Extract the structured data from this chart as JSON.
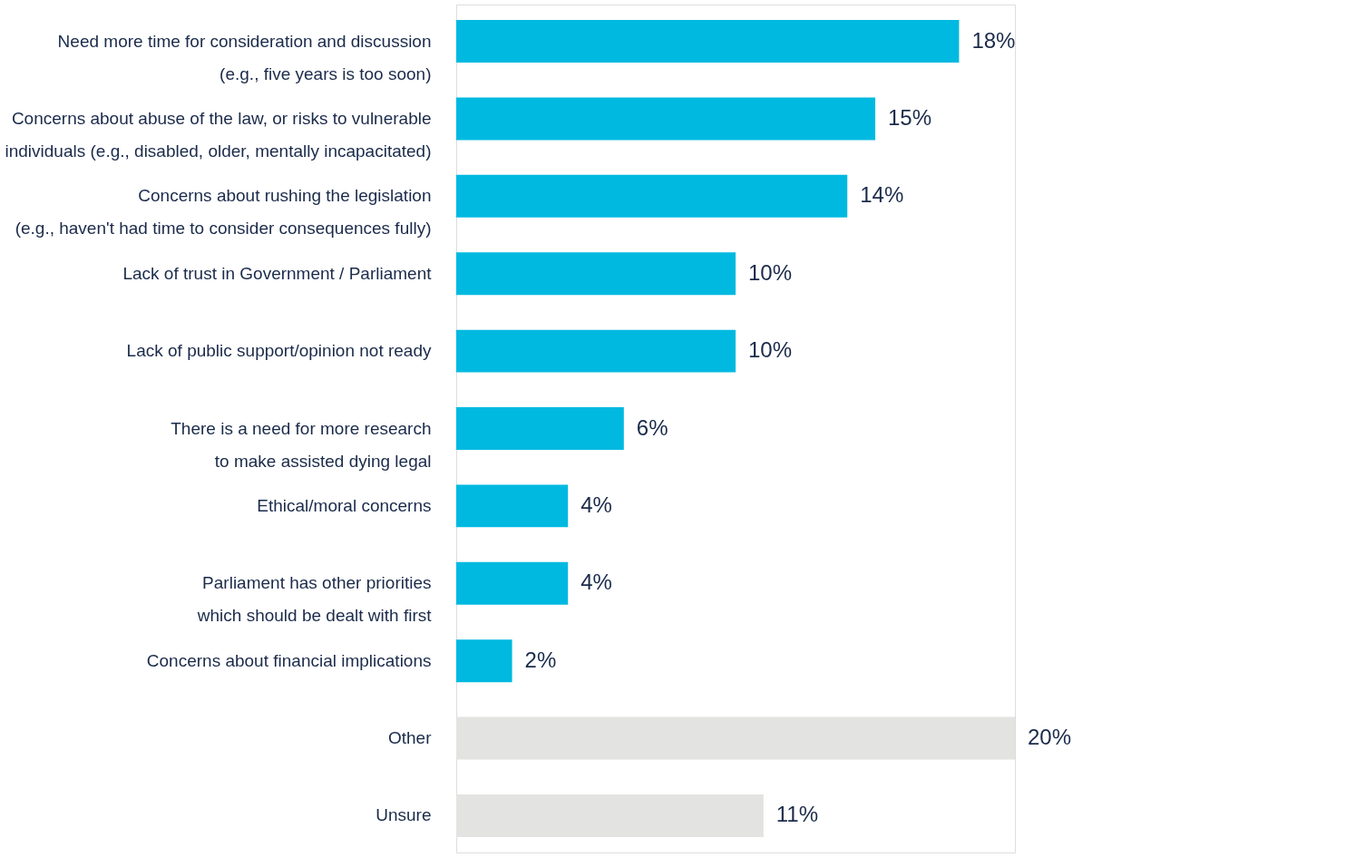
{
  "chart_data": {
    "type": "bar",
    "orientation": "horizontal",
    "categories": [
      "Need more time for consideration and discussion\n(e.g., five years is too soon)",
      "Concerns about abuse of the law, or risks to vulnerable\nindividuals (e.g., disabled, older, mentally incapacitated)",
      "Concerns about rushing the legislation\n(e.g., haven't had time to consider consequences fully)",
      "Lack of trust in Government / Parliament",
      "Lack of public support/opinion not ready",
      "There is a need for more research\nto make assisted dying legal",
      "Ethical/moral concerns",
      "Parliament has other priorities\nwhich should be dealt with first",
      "Concerns about financial implications",
      "Other",
      "Unsure"
    ],
    "values": [
      18,
      15,
      14,
      10,
      10,
      6,
      4,
      4,
      2,
      20,
      11
    ],
    "value_labels": [
      "18%",
      "15%",
      "14%",
      "10%",
      "10%",
      "6%",
      "4%",
      "4%",
      "2%",
      "20%",
      "11%"
    ],
    "colors": [
      "#00b9e0",
      "#00b9e0",
      "#00b9e0",
      "#00b9e0",
      "#00b9e0",
      "#00b9e0",
      "#00b9e0",
      "#00b9e0",
      "#00b9e0",
      "#e3e3e1",
      "#e3e3e1"
    ],
    "grid": false,
    "legend": false
  }
}
